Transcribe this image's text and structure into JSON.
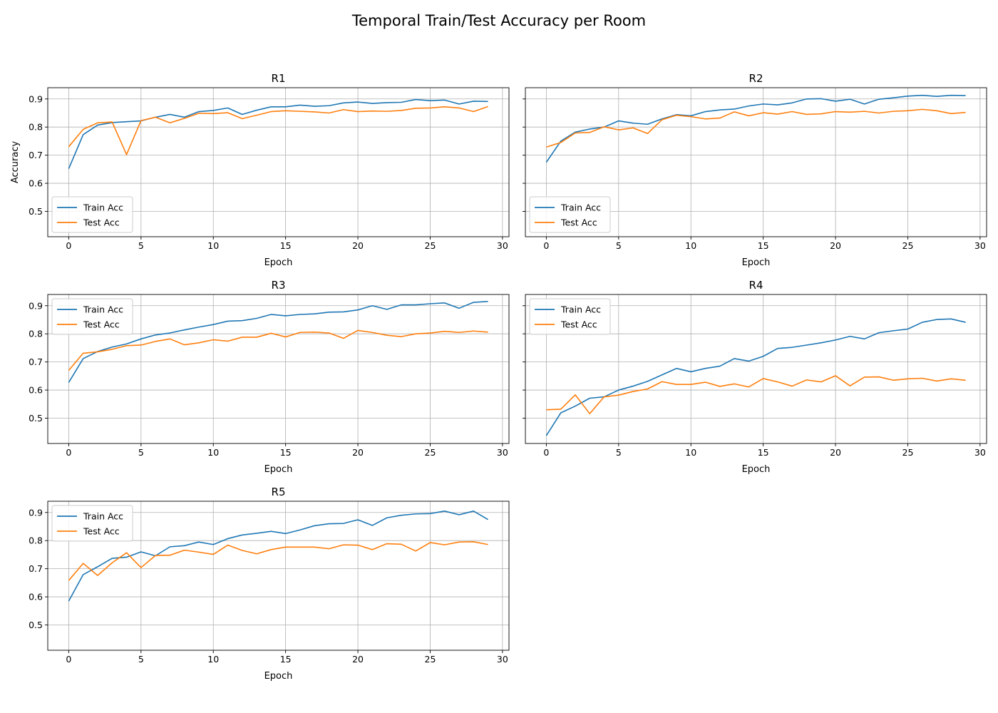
{
  "figure": {
    "title": "Temporal Train/Test Accuracy per Room",
    "colors": {
      "train": "#1f77b4",
      "test": "#ff7f0e",
      "grid": "#b0b0b0",
      "axis": "#000000"
    }
  },
  "chart_data": [
    {
      "type": "line",
      "title": "R1",
      "xlabel": "Epoch",
      "ylabel": "Accuracy",
      "xlim": [
        -1.45,
        30.45
      ],
      "ylim": [
        0.41,
        0.94
      ],
      "xticks": [
        0,
        5,
        10,
        15,
        20,
        25,
        30
      ],
      "yticks": [
        0.5,
        0.6,
        0.7,
        0.8,
        0.9
      ],
      "grid": true,
      "legend": "lower left",
      "x": [
        0,
        1,
        2,
        3,
        4,
        5,
        6,
        7,
        8,
        9,
        10,
        11,
        12,
        13,
        14,
        15,
        16,
        17,
        18,
        19,
        20,
        21,
        22,
        23,
        24,
        25,
        26,
        27,
        28,
        29
      ],
      "series": [
        {
          "name": "Train Acc",
          "color": "#1f77b4",
          "values": [
            0.652,
            0.773,
            0.807,
            0.816,
            0.819,
            0.822,
            0.835,
            0.845,
            0.835,
            0.855,
            0.859,
            0.868,
            0.845,
            0.86,
            0.872,
            0.872,
            0.878,
            0.874,
            0.876,
            0.886,
            0.889,
            0.884,
            0.887,
            0.888,
            0.898,
            0.894,
            0.896,
            0.882,
            0.892,
            0.891
          ]
        },
        {
          "name": "Test Acc",
          "color": "#ff7f0e",
          "values": [
            0.73,
            0.792,
            0.815,
            0.818,
            0.702,
            0.823,
            0.835,
            0.815,
            0.831,
            0.849,
            0.848,
            0.851,
            0.83,
            0.842,
            0.855,
            0.858,
            0.856,
            0.854,
            0.85,
            0.862,
            0.855,
            0.857,
            0.856,
            0.859,
            0.867,
            0.868,
            0.872,
            0.868,
            0.855,
            0.873
          ]
        }
      ]
    },
    {
      "type": "line",
      "title": "R2",
      "xlabel": "Epoch",
      "ylabel": "",
      "xlim": [
        -1.45,
        30.45
      ],
      "ylim": [
        0.41,
        0.94
      ],
      "xticks": [
        0,
        5,
        10,
        15,
        20,
        25,
        30
      ],
      "yticks": [
        0.5,
        0.6,
        0.7,
        0.8,
        0.9
      ],
      "grid": true,
      "legend": "lower left",
      "x": [
        0,
        1,
        2,
        3,
        4,
        5,
        6,
        7,
        8,
        9,
        10,
        11,
        12,
        13,
        14,
        15,
        16,
        17,
        18,
        19,
        20,
        21,
        22,
        23,
        24,
        25,
        26,
        27,
        28,
        29
      ],
      "series": [
        {
          "name": "Train Acc",
          "color": "#1f77b4",
          "values": [
            0.675,
            0.75,
            0.782,
            0.793,
            0.8,
            0.822,
            0.814,
            0.81,
            0.829,
            0.844,
            0.84,
            0.855,
            0.861,
            0.864,
            0.875,
            0.882,
            0.879,
            0.886,
            0.9,
            0.901,
            0.892,
            0.899,
            0.882,
            0.899,
            0.904,
            0.91,
            0.913,
            0.909,
            0.913,
            0.912
          ]
        },
        {
          "name": "Test Acc",
          "color": "#ff7f0e",
          "values": [
            0.729,
            0.745,
            0.779,
            0.781,
            0.801,
            0.79,
            0.797,
            0.777,
            0.826,
            0.842,
            0.837,
            0.829,
            0.832,
            0.854,
            0.84,
            0.851,
            0.846,
            0.855,
            0.845,
            0.847,
            0.855,
            0.853,
            0.856,
            0.85,
            0.856,
            0.858,
            0.863,
            0.858,
            0.848,
            0.852
          ]
        }
      ]
    },
    {
      "type": "line",
      "title": "R3",
      "xlabel": "Epoch",
      "ylabel": "",
      "xlim": [
        -1.45,
        30.45
      ],
      "ylim": [
        0.41,
        0.94
      ],
      "xticks": [
        0,
        5,
        10,
        15,
        20,
        25,
        30
      ],
      "yticks": [
        0.5,
        0.6,
        0.7,
        0.8,
        0.9
      ],
      "grid": true,
      "legend": "upper left",
      "x": [
        0,
        1,
        2,
        3,
        4,
        5,
        6,
        7,
        8,
        9,
        10,
        11,
        12,
        13,
        14,
        15,
        16,
        17,
        18,
        19,
        20,
        21,
        22,
        23,
        24,
        25,
        26,
        27,
        28,
        29
      ],
      "series": [
        {
          "name": "Train Acc",
          "color": "#1f77b4",
          "values": [
            0.627,
            0.712,
            0.737,
            0.753,
            0.764,
            0.782,
            0.796,
            0.803,
            0.814,
            0.824,
            0.833,
            0.845,
            0.847,
            0.855,
            0.869,
            0.864,
            0.869,
            0.871,
            0.877,
            0.878,
            0.885,
            0.9,
            0.887,
            0.903,
            0.903,
            0.907,
            0.91,
            0.891,
            0.912,
            0.915
          ]
        },
        {
          "name": "Test Acc",
          "color": "#ff7f0e",
          "values": [
            0.67,
            0.731,
            0.736,
            0.745,
            0.758,
            0.76,
            0.773,
            0.782,
            0.761,
            0.768,
            0.779,
            0.774,
            0.788,
            0.788,
            0.802,
            0.789,
            0.805,
            0.806,
            0.803,
            0.784,
            0.812,
            0.805,
            0.795,
            0.79,
            0.8,
            0.803,
            0.809,
            0.805,
            0.81,
            0.806
          ]
        }
      ]
    },
    {
      "type": "line",
      "title": "R4",
      "xlabel": "Epoch",
      "ylabel": "",
      "xlim": [
        -1.45,
        30.45
      ],
      "ylim": [
        0.41,
        0.94
      ],
      "xticks": [
        0,
        5,
        10,
        15,
        20,
        25,
        30
      ],
      "yticks": [
        0.5,
        0.6,
        0.7,
        0.8,
        0.9
      ],
      "grid": true,
      "legend": "upper left",
      "x": [
        0,
        1,
        2,
        3,
        4,
        5,
        6,
        7,
        8,
        9,
        10,
        11,
        12,
        13,
        14,
        15,
        16,
        17,
        18,
        19,
        20,
        21,
        22,
        23,
        24,
        25,
        26,
        27,
        28,
        29
      ],
      "series": [
        {
          "name": "Train Acc",
          "color": "#1f77b4",
          "values": [
            0.438,
            0.519,
            0.543,
            0.571,
            0.576,
            0.6,
            0.614,
            0.631,
            0.654,
            0.677,
            0.665,
            0.677,
            0.685,
            0.712,
            0.703,
            0.72,
            0.748,
            0.752,
            0.76,
            0.768,
            0.778,
            0.791,
            0.782,
            0.804,
            0.811,
            0.817,
            0.841,
            0.851,
            0.853,
            0.841
          ]
        },
        {
          "name": "Test Acc",
          "color": "#ff7f0e",
          "values": [
            0.53,
            0.532,
            0.583,
            0.516,
            0.576,
            0.582,
            0.595,
            0.604,
            0.63,
            0.62,
            0.62,
            0.628,
            0.613,
            0.622,
            0.611,
            0.641,
            0.629,
            0.614,
            0.636,
            0.629,
            0.651,
            0.615,
            0.646,
            0.647,
            0.635,
            0.64,
            0.642,
            0.632,
            0.64,
            0.635
          ]
        }
      ]
    },
    {
      "type": "line",
      "title": "R5",
      "xlabel": "Epoch",
      "ylabel": "",
      "xlim": [
        -1.45,
        30.45
      ],
      "ylim": [
        0.41,
        0.94
      ],
      "xticks": [
        0,
        5,
        10,
        15,
        20,
        25,
        30
      ],
      "yticks": [
        0.5,
        0.6,
        0.7,
        0.8,
        0.9
      ],
      "grid": true,
      "legend": "upper left",
      "x": [
        0,
        1,
        2,
        3,
        4,
        5,
        6,
        7,
        8,
        9,
        10,
        11,
        12,
        13,
        14,
        15,
        16,
        17,
        18,
        19,
        20,
        21,
        22,
        23,
        24,
        25,
        26,
        27,
        28,
        29
      ],
      "series": [
        {
          "name": "Train Acc",
          "color": "#1f77b4",
          "values": [
            0.585,
            0.679,
            0.707,
            0.737,
            0.741,
            0.76,
            0.746,
            0.778,
            0.782,
            0.795,
            0.786,
            0.807,
            0.82,
            0.826,
            0.833,
            0.825,
            0.838,
            0.853,
            0.86,
            0.861,
            0.874,
            0.854,
            0.881,
            0.89,
            0.895,
            0.896,
            0.905,
            0.892,
            0.905,
            0.875
          ]
        },
        {
          "name": "Test Acc",
          "color": "#ff7f0e",
          "values": [
            0.658,
            0.719,
            0.676,
            0.721,
            0.757,
            0.704,
            0.747,
            0.748,
            0.766,
            0.759,
            0.751,
            0.784,
            0.765,
            0.753,
            0.768,
            0.777,
            0.777,
            0.777,
            0.771,
            0.785,
            0.784,
            0.768,
            0.789,
            0.787,
            0.763,
            0.793,
            0.785,
            0.795,
            0.796,
            0.786
          ]
        }
      ]
    }
  ]
}
